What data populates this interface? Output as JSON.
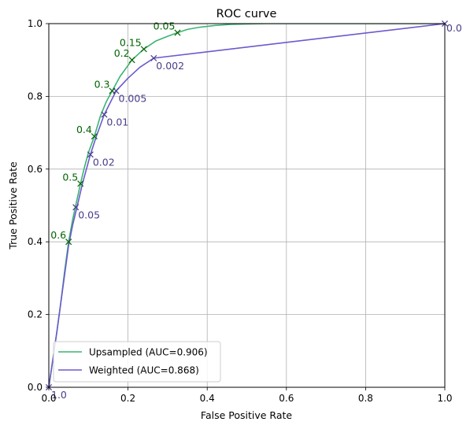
{
  "chart_data": {
    "type": "line",
    "title": "ROC curve",
    "xlabel": "False Positive Rate",
    "ylabel": "True Positive Rate",
    "xlim": [
      0,
      1
    ],
    "ylim": [
      0,
      1
    ],
    "xticks": [
      "0.0",
      "0.2",
      "0.4",
      "0.6",
      "0.8",
      "1.0"
    ],
    "yticks": [
      "0.0",
      "0.2",
      "0.4",
      "0.6",
      "0.8",
      "1.0"
    ],
    "grid": true,
    "legend_position": "lower-left",
    "series": [
      {
        "name": "Upsampled (AUC=0.906)",
        "color": "#3cb371",
        "label_color": "#006400",
        "x": [
          0,
          0.01,
          0.02,
          0.03,
          0.04,
          0.05,
          0.06,
          0.07,
          0.08,
          0.09,
          0.1,
          0.115,
          0.13,
          0.145,
          0.16,
          0.18,
          0.21,
          0.24,
          0.27,
          0.3,
          0.325,
          0.35,
          0.38,
          0.42,
          0.46,
          0.5,
          0.55,
          0.6,
          0.7,
          0.8,
          1.0
        ],
        "y": [
          0,
          0.075,
          0.15,
          0.23,
          0.32,
          0.4,
          0.46,
          0.51,
          0.56,
          0.605,
          0.645,
          0.69,
          0.745,
          0.785,
          0.815,
          0.855,
          0.9,
          0.93,
          0.952,
          0.965,
          0.975,
          0.984,
          0.99,
          0.995,
          0.998,
          0.999,
          1.0,
          1.0,
          1.0,
          1.0,
          1.0
        ],
        "thresholds": [
          {
            "label": "0.6",
            "x": 0.05,
            "y": 0.4
          },
          {
            "label": "0.5",
            "x": 0.08,
            "y": 0.56
          },
          {
            "label": "0.4",
            "x": 0.115,
            "y": 0.69
          },
          {
            "label": "0.3",
            "x": 0.16,
            "y": 0.815
          },
          {
            "label": "0.2",
            "x": 0.21,
            "y": 0.9
          },
          {
            "label": "0.15",
            "x": 0.24,
            "y": 0.93
          },
          {
            "label": "0.05",
            "x": 0.325,
            "y": 0.975
          }
        ]
      },
      {
        "name": "Weighted (AUC=0.868)",
        "color": "#6a5acd",
        "label_color": "#483d8b",
        "x": [
          0,
          0.01,
          0.02,
          0.03,
          0.04,
          0.05,
          0.06,
          0.07,
          0.085,
          0.105,
          0.12,
          0.14,
          0.17,
          0.2,
          0.23,
          0.265,
          1.0
        ],
        "y": [
          0,
          0.075,
          0.15,
          0.23,
          0.31,
          0.39,
          0.445,
          0.49,
          0.56,
          0.64,
          0.69,
          0.75,
          0.815,
          0.85,
          0.88,
          0.905,
          1.0
        ],
        "thresholds": [
          {
            "label": "1.0",
            "x": 0.0,
            "y": 0.0
          },
          {
            "label": "0.05",
            "x": 0.068,
            "y": 0.495
          },
          {
            "label": "0.02",
            "x": 0.105,
            "y": 0.64
          },
          {
            "label": "0.01",
            "x": 0.14,
            "y": 0.75
          },
          {
            "label": "0.005",
            "x": 0.17,
            "y": 0.815
          },
          {
            "label": "0.002",
            "x": 0.265,
            "y": 0.905
          },
          {
            "label": "0.0",
            "x": 1.0,
            "y": 1.0
          }
        ]
      }
    ]
  }
}
